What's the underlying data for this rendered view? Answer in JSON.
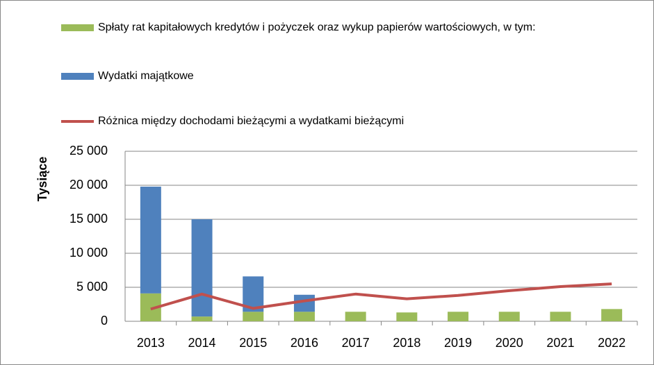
{
  "chart_data": {
    "type": "bar",
    "y_label": "Tysiące",
    "categories": [
      "2013",
      "2014",
      "2015",
      "2016",
      "2017",
      "2018",
      "2019",
      "2020",
      "2021",
      "2022"
    ],
    "series": [
      {
        "name": "Spłaty rat kapitałowych kredytów i pożyczek oraz wykup papierów wartościowych, w tym:",
        "color": "#9bbb59",
        "type": "bar",
        "values": [
          4100,
          700,
          1400,
          1400,
          1400,
          1300,
          1400,
          1400,
          1400,
          1800
        ]
      },
      {
        "name": "Wydatki majątkowe",
        "color": "#4f81bd",
        "type": "bar",
        "values": [
          15700,
          14300,
          5200,
          2500,
          0,
          0,
          0,
          0,
          0,
          0
        ]
      },
      {
        "name": "Różnica między dochodami bieżącymi a wydatkami bieżącymi",
        "color": "#c0504d",
        "type": "line",
        "values": [
          1800,
          4000,
          1900,
          3000,
          4000,
          3300,
          3800,
          4500,
          5100,
          5500
        ]
      }
    ],
    "ylim": [
      0,
      25000
    ],
    "yticks": [
      0,
      {
        "value": 5000,
        "label": "5 000"
      },
      {
        "value": 10000,
        "label": "10 000"
      },
      {
        "value": 15000,
        "label": "15 000"
      },
      {
        "value": 20000,
        "label": "20 000"
      },
      {
        "value": 25000,
        "label": "25 000"
      }
    ],
    "grid": true
  }
}
